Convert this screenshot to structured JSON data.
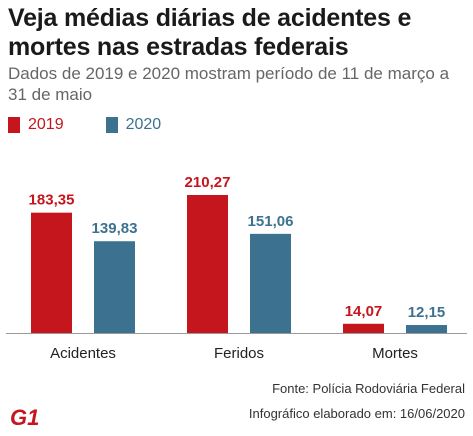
{
  "title": "Veja médias diárias de acidentes e mortes nas estradas federais",
  "subtitle": "Dados de 2019 e 2020 mostram período de 11 de março a 31 de maio",
  "source": "Fonte: Polícia Rodoviária Federal",
  "credit": "Infográfico elaborado em: 16/06/2020",
  "logo_text": "G1",
  "colors": {
    "2019": "#c4161c",
    "2020": "#3c7290"
  },
  "chart_data": {
    "type": "bar",
    "categories": [
      "Acidentes",
      "Feridos",
      "Mortes"
    ],
    "series": [
      {
        "name": "2019",
        "values": [
          183.35,
          210.27,
          14.07
        ],
        "labels": [
          "183,35",
          "210,27",
          "14,07"
        ]
      },
      {
        "name": "2020",
        "values": [
          139.83,
          151.06,
          12.15
        ],
        "labels": [
          "139,83",
          "151,06",
          "12,15"
        ]
      }
    ],
    "legend": "top-left",
    "grid": false,
    "ylim": [
      0,
      210.27
    ]
  }
}
